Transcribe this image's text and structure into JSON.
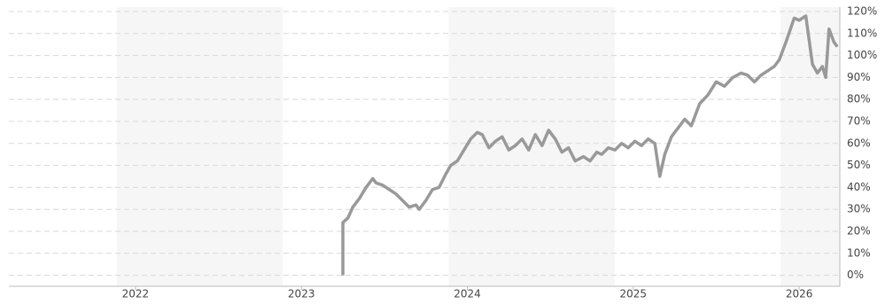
{
  "chart_data": {
    "type": "line",
    "xlim": [
      2021.237,
      2026.245
    ],
    "xticks": [
      2022,
      2023,
      2024,
      2025,
      2026
    ],
    "ylim": [
      -5,
      122
    ],
    "yticks": [
      {
        "value": 0,
        "label": "0%"
      },
      {
        "value": 10,
        "label": "10%"
      },
      {
        "value": 20,
        "label": "20%"
      },
      {
        "value": 30,
        "label": "30%"
      },
      {
        "value": 40,
        "label": "40%"
      },
      {
        "value": 50,
        "label": "50%"
      },
      {
        "value": 60,
        "label": "60%"
      },
      {
        "value": 70,
        "label": "70%"
      },
      {
        "value": 80,
        "label": "80%"
      },
      {
        "value": 90,
        "label": "90%"
      },
      {
        "value": 100,
        "label": "100%"
      },
      {
        "value": 110,
        "label": "110%"
      },
      {
        "value": 120,
        "label": "120%"
      }
    ],
    "grid": true,
    "series": [
      {
        "color": "#999999",
        "x": [
          2023.25,
          2023.25,
          2023.28,
          2023.31,
          2023.35,
          2023.39,
          2023.43,
          2023.45,
          2023.49,
          2023.53,
          2023.57,
          2023.61,
          2023.65,
          2023.69,
          2023.71,
          2023.75,
          2023.79,
          2023.83,
          2023.87,
          2023.9,
          2023.94,
          2023.98,
          2024.02,
          2024.06,
          2024.09,
          2024.13,
          2024.17,
          2024.21,
          2024.25,
          2024.29,
          2024.33,
          2024.37,
          2024.41,
          2024.45,
          2024.49,
          2024.53,
          2024.57,
          2024.61,
          2024.65,
          2024.7,
          2024.74,
          2024.78,
          2024.81,
          2024.85,
          2024.89,
          2024.93,
          2024.97,
          2025.01,
          2025.05,
          2025.09,
          2025.13,
          2025.16,
          2025.19,
          2025.23,
          2025.27,
          2025.31,
          2025.35,
          2025.4,
          2025.45,
          2025.5,
          2025.55,
          2025.6,
          2025.65,
          2025.69,
          2025.73,
          2025.77,
          2025.81,
          2025.85,
          2025.88,
          2025.92,
          2025.97,
          2026.0,
          2026.04,
          2026.08,
          2026.11,
          2026.14,
          2026.16,
          2026.18,
          2026.21,
          2026.23
        ],
        "values": [
          0,
          24,
          26,
          31,
          35,
          40,
          44,
          42,
          41,
          39,
          37,
          34,
          31,
          32,
          30,
          34,
          39,
          40,
          46,
          50,
          52,
          57,
          62,
          65,
          64,
          58,
          61,
          63,
          57,
          59,
          62,
          57,
          64,
          59,
          66,
          62,
          56,
          58,
          52,
          54,
          52,
          56,
          55,
          58,
          57,
          60,
          58,
          61,
          59,
          62,
          60,
          45,
          55,
          63,
          67,
          71,
          68,
          78,
          82,
          88,
          86,
          90,
          92,
          91,
          88,
          91,
          93,
          95,
          98,
          106,
          117,
          116,
          118,
          96,
          92,
          95,
          90,
          112,
          106,
          104
        ]
      }
    ]
  }
}
